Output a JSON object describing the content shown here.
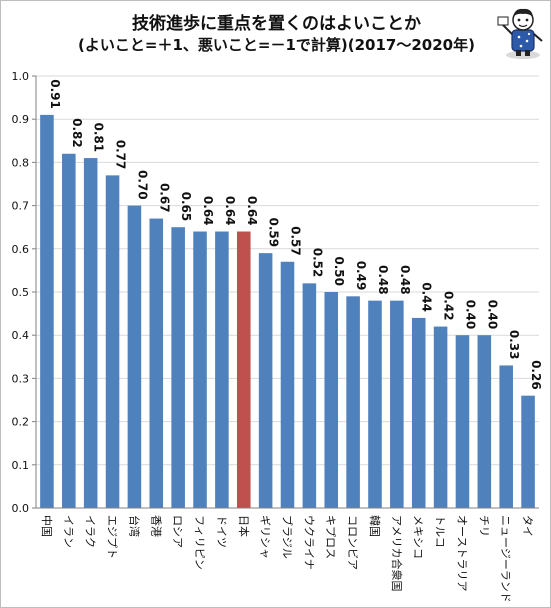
{
  "title_line1": "技術進歩に重点を置くのはよいことか",
  "title_line2": "(よいこと=＋1、悪いこと=－1で計算)(2017～2020年)",
  "chart_data": {
    "type": "bar",
    "title": "技術進歩に重点を置くのはよいことか",
    "subtitle": "(よいこと=＋1、悪いこと=－1で計算)(2017～2020年)",
    "categories": [
      "中国",
      "イラン",
      "イラク",
      "エジプト",
      "台湾",
      "香港",
      "ロシア",
      "フィリピン",
      "ドイツ",
      "日本",
      "ギリシャ",
      "ブラジル",
      "ウクライナ",
      "キプロス",
      "コロンビア",
      "韓国",
      "アメリカ合衆国",
      "メキシコ",
      "トルコ",
      "オーストラリア",
      "チリ",
      "ニュージーランド",
      "タイ"
    ],
    "values": [
      0.91,
      0.82,
      0.81,
      0.77,
      0.7,
      0.67,
      0.65,
      0.64,
      0.64,
      0.64,
      0.59,
      0.57,
      0.52,
      0.5,
      0.49,
      0.48,
      0.48,
      0.44,
      0.42,
      0.4,
      0.4,
      0.33,
      0.26
    ],
    "value_labels": [
      "0.91",
      "0.82",
      "0.81",
      "0.77",
      "0.70",
      "0.67",
      "0.65",
      "0.64",
      "0.64",
      "0.64",
      "0.59",
      "0.57",
      "0.52",
      "0.50",
      "0.49",
      "0.48",
      "0.48",
      "0.44",
      "0.42",
      "0.40",
      "0.40",
      "0.33",
      "0.26"
    ],
    "highlight_category": "日本",
    "ylim": [
      0,
      1.0
    ],
    "yticks": [
      "0.0",
      "0.1",
      "0.2",
      "0.3",
      "0.4",
      "0.5",
      "0.6",
      "0.7",
      "0.8",
      "0.9",
      "1.0"
    ],
    "grid": true,
    "legend": "none",
    "colors": {
      "bar": "#4f81bd",
      "highlight": "#c0504d",
      "grid": "#d9d9d9",
      "axis": "#808080"
    }
  }
}
